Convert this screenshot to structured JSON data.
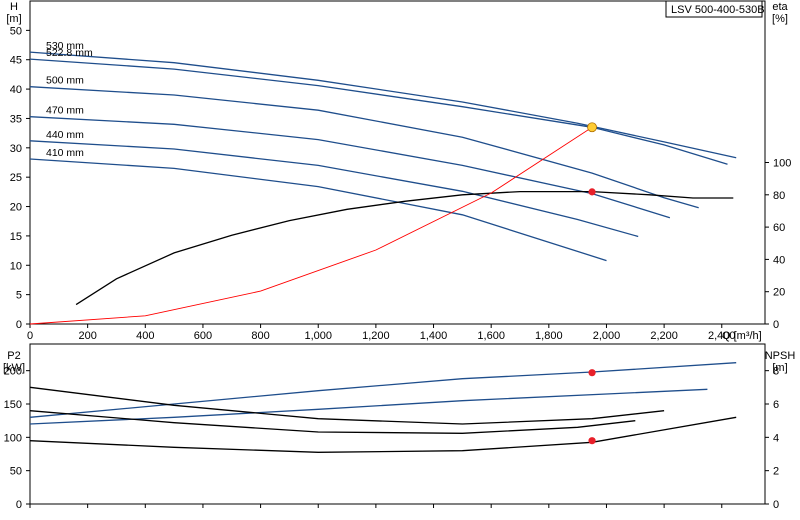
{
  "title": "LSV 500-400-530B",
  "colors": {
    "blue": "#1f4e8c",
    "black": "#000000",
    "red": "#ff0000",
    "dutyYellow": "#ffcc33",
    "dutyRed": "#e8202a"
  },
  "chart_data": [
    {
      "id": "head",
      "type": "line",
      "title": "LSV 500-400-530B",
      "xlabel": "Q [m³/h]",
      "ylabel_left": [
        "H",
        "[m]"
      ],
      "ylabel_right": [
        "eta",
        "[%]"
      ],
      "xlim": [
        0,
        2550
      ],
      "ylim": [
        0,
        55
      ],
      "ylim_right": [
        0,
        200
      ],
      "xticks": [
        0,
        200,
        400,
        600,
        800,
        1000,
        1200,
        1400,
        1600,
        1800,
        2000,
        2200,
        2400
      ],
      "xtick_labels": [
        "0",
        "200",
        "400",
        "600",
        "800",
        "1,000",
        "1,200",
        "1,400",
        "1,600",
        "1,800",
        "2,000",
        "2,200",
        "2,400"
      ],
      "yticks": [
        0,
        5,
        10,
        15,
        20,
        25,
        30,
        35,
        40,
        45,
        50
      ],
      "yticks_right": [
        0,
        20,
        40,
        60,
        80,
        100
      ],
      "grid": true,
      "series": [
        {
          "name": "530 mm",
          "color": "#1f4e8c",
          "style": "solid",
          "points": [
            [
              0,
              46.3
            ],
            [
              500,
              44.5
            ],
            [
              1000,
              41.5
            ],
            [
              1500,
              37.8
            ],
            [
              1900,
              34.2
            ],
            [
              2200,
              31
            ],
            [
              2450,
              28.3
            ]
          ]
        },
        {
          "name": "522.8 mm",
          "color": "#1f4e8c",
          "style": "solid",
          "points": [
            [
              0,
              45.1
            ],
            [
              500,
              43.4
            ],
            [
              1000,
              40.6
            ],
            [
              1500,
              37
            ],
            [
              1950,
              33.5
            ],
            [
              2200,
              30.5
            ],
            [
              2420,
              27.2
            ]
          ]
        },
        {
          "name": "500 mm",
          "color": "#1f4e8c",
          "style": "solid",
          "points": [
            [
              0,
              40.4
            ],
            [
              500,
              39
            ],
            [
              1000,
              36.4
            ],
            [
              1500,
              31.8
            ],
            [
              1950,
              25.7
            ],
            [
              2200,
              21.5
            ],
            [
              2320,
              19.8
            ]
          ]
        },
        {
          "name": "470 mm",
          "color": "#1f4e8c",
          "style": "solid",
          "points": [
            [
              0,
              35.3
            ],
            [
              500,
              34
            ],
            [
              1000,
              31.4
            ],
            [
              1500,
              27
            ],
            [
              1950,
              22.2
            ],
            [
              2220,
              18.1
            ]
          ]
        },
        {
          "name": "440 mm",
          "color": "#1f4e8c",
          "style": "solid",
          "points": [
            [
              0,
              31.2
            ],
            [
              500,
              29.8
            ],
            [
              1000,
              27
            ],
            [
              1500,
              22.6
            ],
            [
              1900,
              17.8
            ],
            [
              2110,
              14.9
            ]
          ]
        },
        {
          "name": "410 mm",
          "color": "#1f4e8c",
          "style": "solid",
          "points": [
            [
              0,
              28.1
            ],
            [
              500,
              26.5
            ],
            [
              1000,
              23.4
            ],
            [
              1500,
              18.6
            ],
            [
              2000,
              10.8
            ]
          ]
        },
        {
          "name": "",
          "color": "#000000",
          "style": "solid",
          "axis": "right",
          "points": [
            [
              160,
              12
            ],
            [
              300,
              28
            ],
            [
              500,
              44
            ],
            [
              700,
              55
            ],
            [
              900,
              64
            ],
            [
              1100,
              71
            ],
            [
              1300,
              76
            ],
            [
              1500,
              80
            ],
            [
              1700,
              82
            ],
            [
              1950,
              82
            ],
            [
              2150,
              80
            ],
            [
              2300,
              78
            ],
            [
              2440,
              78
            ]
          ]
        },
        {
          "name": "",
          "color": "#ff0000",
          "style": "solid",
          "points": [
            [
              0,
              0
            ],
            [
              400,
              1.4
            ],
            [
              800,
              5.6
            ],
            [
              1200,
              12.6
            ],
            [
              1600,
              22.3
            ],
            [
              1950,
              33.5
            ]
          ]
        }
      ],
      "points": [
        {
          "x": 1950,
          "y": 33.5,
          "color": "#ffcc33"
        },
        {
          "x": 1950,
          "y": 22.5,
          "color": "#e8202a"
        }
      ]
    },
    {
      "id": "power",
      "type": "line",
      "ylabel_left": [
        "P2",
        "[kW]"
      ],
      "ylabel_right": [
        "NPSH",
        "[m]"
      ],
      "xlim": [
        0,
        2550
      ],
      "ylim": [
        0,
        240
      ],
      "ylim_right": [
        0,
        9.6
      ],
      "yticks": [
        0,
        50,
        100,
        150,
        200
      ],
      "yticks_right": [
        0,
        2,
        4,
        6,
        8
      ],
      "grid": true,
      "series": [
        {
          "name": "",
          "color": "#1f4e8c",
          "style": "solid",
          "points": [
            [
              0,
              130
            ],
            [
              500,
              150
            ],
            [
              1000,
              170
            ],
            [
              1500,
              188
            ],
            [
              1950,
              198
            ],
            [
              2450,
              212
            ]
          ]
        },
        {
          "name": "",
          "color": "#1f4e8c",
          "style": "solid",
          "points": [
            [
              0,
              120
            ],
            [
              500,
              130
            ],
            [
              1000,
              142
            ],
            [
              1500,
              155
            ],
            [
              2000,
              165
            ],
            [
              2350,
              172
            ]
          ]
        },
        {
          "name": "",
          "color": "#000000",
          "style": "solid",
          "points": [
            [
              0,
              175
            ],
            [
              500,
              148
            ],
            [
              1000,
              128
            ],
            [
              1500,
              120
            ],
            [
              1950,
              128
            ],
            [
              2200,
              140
            ]
          ]
        },
        {
          "name": "",
          "color": "#000000",
          "style": "solid",
          "points": [
            [
              0,
              140
            ],
            [
              500,
              122
            ],
            [
              1000,
              108
            ],
            [
              1500,
              106
            ],
            [
              1900,
              115
            ],
            [
              2100,
              125
            ]
          ]
        },
        {
          "name": "",
          "color": "#000000",
          "style": "solid",
          "axis": "right",
          "points": [
            [
              0,
              3.8
            ],
            [
              500,
              3.4
            ],
            [
              1000,
              3.1
            ],
            [
              1500,
              3.2
            ],
            [
              1950,
              3.7
            ],
            [
              2450,
              5.2
            ]
          ]
        }
      ],
      "points": [
        {
          "x": 1950,
          "y": 197,
          "color": "#e8202a"
        },
        {
          "x": 1950,
          "y": 95,
          "color": "#e8202a"
        }
      ]
    }
  ]
}
